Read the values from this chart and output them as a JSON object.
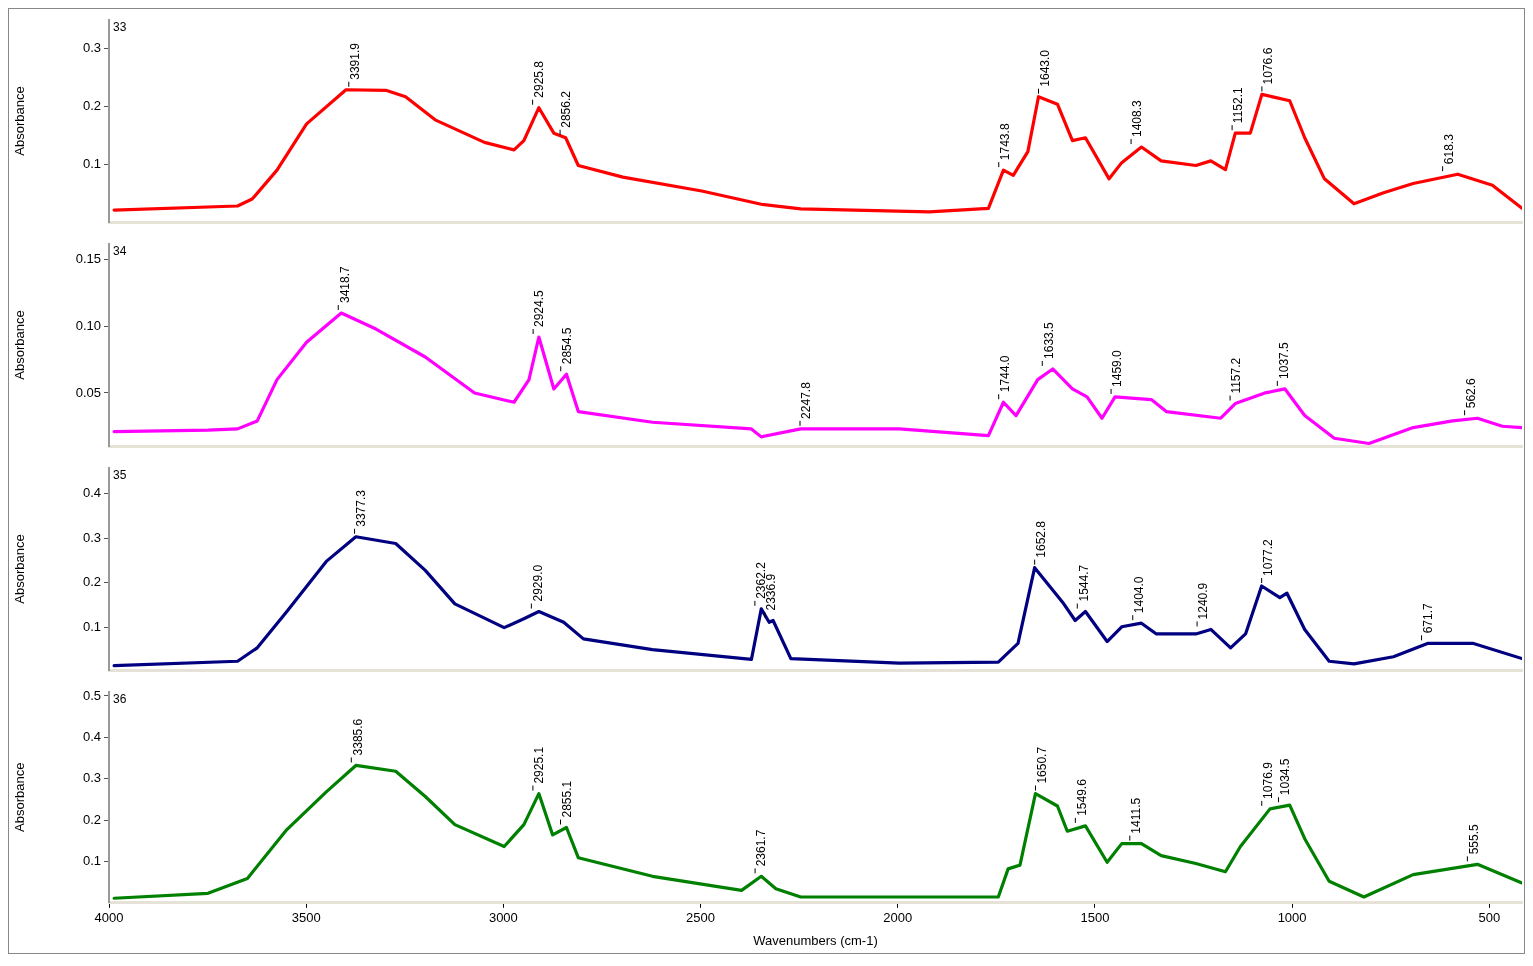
{
  "chart_data": [
    {
      "type": "line",
      "title": "33",
      "ylabel": "Absorbance",
      "xlim": [
        4000,
        417
      ],
      "ylim": [
        0,
        0.35
      ],
      "yticks": [
        0.1,
        0.2,
        0.3
      ],
      "tick_labels": "y",
      "grid": false,
      "legend": false,
      "series": [
        {
          "color": "#ff0000",
          "x": [
            3987,
            3674,
            3637,
            3574,
            3499,
            3399,
            3298,
            3248,
            3173,
            3048,
            2973,
            2948,
            2910,
            2872,
            2842,
            2810,
            2697,
            2497,
            2346,
            2246,
            1920,
            1770,
            1732,
            1707,
            1670,
            1643.0,
            1595,
            1557,
            1524,
            1464,
            1432,
            1382,
            1332,
            1244,
            1206,
            1169,
            1144,
            1106,
            1076.6,
            1006,
            968,
            918,
            843,
            768,
            693,
            580,
            492,
            417
          ],
          "values": [
            0.021,
            0.028,
            0.04,
            0.09,
            0.17,
            0.229,
            0.228,
            0.217,
            0.177,
            0.138,
            0.125,
            0.141,
            0.198,
            0.154,
            0.146,
            0.098,
            0.078,
            0.054,
            0.031,
            0.023,
            0.018,
            0.024,
            0.09,
            0.081,
            0.122,
            0.217,
            0.204,
            0.141,
            0.146,
            0.075,
            0.103,
            0.13,
            0.106,
            0.098,
            0.106,
            0.091,
            0.154,
            0.154,
            0.221,
            0.21,
            0.146,
            0.075,
            0.032,
            0.051,
            0.067,
            0.083,
            0.064,
            0.024
          ]
        }
      ],
      "annotations": [
        {
          "text": "3391.9",
          "x": 3391.9,
          "y": 0.229
        },
        {
          "text": "2925.8",
          "x": 2925.8,
          "y": 0.198
        },
        {
          "text": "2856.2",
          "x": 2856.2,
          "y": 0.146
        },
        {
          "text": "1743.8",
          "x": 1743.8,
          "y": 0.09
        },
        {
          "text": "1643.0",
          "x": 1643.0,
          "y": 0.217
        },
        {
          "text": "1408.3",
          "x": 1408.3,
          "y": 0.13
        },
        {
          "text": "1152.1",
          "x": 1152.1,
          "y": 0.154
        },
        {
          "text": "1076.6",
          "x": 1076.6,
          "y": 0.221
        },
        {
          "text": "618.3",
          "x": 618.3,
          "y": 0.083
        }
      ]
    },
    {
      "type": "line",
      "title": "34",
      "ylabel": "Absorbance",
      "xlim": [
        4000,
        417
      ],
      "ylim": [
        0.01,
        0.162
      ],
      "yticks": [
        0.05,
        {
          "value": 0.1,
          "label": "0.10"
        },
        0.15
      ],
      "tick_labels": "y",
      "grid": false,
      "legend": false,
      "series": [
        {
          "color": "#ff00ff",
          "x": [
            3987,
            3749,
            3674,
            3624,
            3574,
            3499,
            3411,
            3323,
            3198,
            3073,
            2973,
            2935,
            2910,
            2872,
            2840,
            2810,
            2622,
            2371,
            2346,
            2246,
            1996,
            1770,
            1732,
            1700,
            1645,
            1607,
            1557,
            1520,
            1482,
            1449,
            1357,
            1319,
            1181,
            1144,
            1069,
            1018,
            968,
            893,
            805,
            693,
            593,
            530,
            467,
            417
          ],
          "values": [
            0.021,
            0.022,
            0.023,
            0.029,
            0.06,
            0.088,
            0.11,
            0.098,
            0.077,
            0.05,
            0.043,
            0.06,
            0.092,
            0.053,
            0.064,
            0.036,
            0.028,
            0.023,
            0.017,
            0.023,
            0.023,
            0.018,
            0.043,
            0.033,
            0.06,
            0.068,
            0.053,
            0.047,
            0.031,
            0.047,
            0.045,
            0.036,
            0.031,
            0.042,
            0.05,
            0.053,
            0.033,
            0.016,
            0.012,
            0.024,
            0.029,
            0.031,
            0.025,
            0.024
          ]
        }
      ],
      "annotations": [
        {
          "text": "3418.7",
          "x": 3418.7,
          "y": 0.11
        },
        {
          "text": "2924.5",
          "x": 2924.5,
          "y": 0.092
        },
        {
          "text": "2854.5",
          "x": 2854.5,
          "y": 0.064
        },
        {
          "text": "2247.8",
          "x": 2247.8,
          "y": 0.023
        },
        {
          "text": "1744.0",
          "x": 1744.0,
          "y": 0.043
        },
        {
          "text": "1633.5",
          "x": 1633.5,
          "y": 0.068
        },
        {
          "text": "1459.0",
          "x": 1459.0,
          "y": 0.047
        },
        {
          "text": "1157.2",
          "x": 1157.2,
          "y": 0.042
        },
        {
          "text": "1037.5",
          "x": 1037.5,
          "y": 0.053
        },
        {
          "text": "562.6",
          "x": 562.6,
          "y": 0.031
        }
      ]
    },
    {
      "type": "line",
      "title": "35",
      "ylabel": "Absorbance",
      "xlim": [
        4000,
        417
      ],
      "ylim": [
        0.005,
        0.457
      ],
      "yticks": [
        0.1,
        0.2,
        0.3,
        0.4
      ],
      "tick_labels": "y",
      "grid": false,
      "legend": false,
      "series": [
        {
          "color": "#000080",
          "x": [
            3987,
            3674,
            3624,
            3549,
            3449,
            3374,
            3273,
            3198,
            3123,
            2998,
            2948,
            2910,
            2847,
            2797,
            2622,
            2371,
            2346,
            2326,
            2316,
            2271,
            1996,
            1745,
            1695,
            1652.8,
            1582,
            1550,
            1524,
            1469,
            1432,
            1382,
            1344,
            1244,
            1206,
            1156,
            1118,
            1077.2,
            1031,
            1013,
            968,
            906,
            843,
            743,
            655,
            542,
            417
          ],
          "values": [
            0.015,
            0.025,
            0.055,
            0.136,
            0.248,
            0.303,
            0.288,
            0.228,
            0.153,
            0.1,
            0.12,
            0.136,
            0.112,
            0.075,
            0.051,
            0.029,
            0.142,
            0.112,
            0.116,
            0.031,
            0.021,
            0.023,
            0.065,
            0.234,
            0.157,
            0.116,
            0.136,
            0.069,
            0.102,
            0.11,
            0.086,
            0.086,
            0.096,
            0.055,
            0.086,
            0.193,
            0.167,
            0.177,
            0.096,
            0.025,
            0.019,
            0.035,
            0.065,
            0.065,
            0.031
          ]
        }
      ],
      "annotations": [
        {
          "text": "3377.3",
          "x": 3377.3,
          "y": 0.303
        },
        {
          "text": "2929.0",
          "x": 2929.0,
          "y": 0.136
        },
        {
          "text": "2362.2",
          "x": 2362.2,
          "y": 0.142
        },
        {
          "text": "2336.9",
          "x": 2336.9,
          "y": 0.116
        },
        {
          "text": "1652.8",
          "x": 1652.8,
          "y": 0.234
        },
        {
          "text": "1544.7",
          "x": 1544.7,
          "y": 0.136
        },
        {
          "text": "1404.0",
          "x": 1404.0,
          "y": 0.11
        },
        {
          "text": "1240.9",
          "x": 1240.9,
          "y": 0.096
        },
        {
          "text": "1077.2",
          "x": 1077.2,
          "y": 0.193
        },
        {
          "text": "671.7",
          "x": 671.7,
          "y": 0.065
        }
      ]
    },
    {
      "type": "line",
      "title": "36",
      "ylabel": "Absorbance",
      "xlabel": "Wavenumbers (cm-1)",
      "xlim": [
        4000,
        417
      ],
      "xticks": [
        4000,
        3500,
        3000,
        2500,
        2000,
        1500,
        1000,
        500
      ],
      "ylim": [
        0,
        0.51
      ],
      "yticks": [
        0.1,
        0.2,
        0.3,
        0.4,
        0.5
      ],
      "grid": false,
      "legend": false,
      "series": [
        {
          "color": "#008000",
          "x": [
            3987,
            3749,
            3649,
            3549,
            3449,
            3374,
            3273,
            3198,
            3123,
            2998,
            2948,
            2910,
            2875,
            2840,
            2810,
            2622,
            2396,
            2346,
            2309,
            2246,
            1745,
            1720,
            1690,
            1650.7,
            1595,
            1570,
            1524,
            1469,
            1432,
            1382,
            1332,
            1244,
            1169,
            1131,
            1056,
            1006,
            968,
            906,
            818,
            693,
            530,
            417
          ],
          "values": [
            0.011,
            0.023,
            0.059,
            0.177,
            0.268,
            0.332,
            0.318,
            0.257,
            0.189,
            0.136,
            0.189,
            0.264,
            0.164,
            0.182,
            0.109,
            0.064,
            0.03,
            0.064,
            0.034,
            0.014,
            0.014,
            0.082,
            0.091,
            0.264,
            0.234,
            0.173,
            0.186,
            0.098,
            0.143,
            0.143,
            0.114,
            0.095,
            0.075,
            0.136,
            0.227,
            0.236,
            0.155,
            0.052,
            0.014,
            0.068,
            0.093,
            0.048
          ]
        }
      ],
      "annotations": [
        {
          "text": "3385.6",
          "x": 3385.6,
          "y": 0.332
        },
        {
          "text": "2925.1",
          "x": 2925.1,
          "y": 0.264
        },
        {
          "text": "2855.1",
          "x": 2855.1,
          "y": 0.182
        },
        {
          "text": "2361.7",
          "x": 2361.7,
          "y": 0.064
        },
        {
          "text": "1650.7",
          "x": 1650.7,
          "y": 0.264
        },
        {
          "text": "1549.6",
          "x": 1549.6,
          "y": 0.186
        },
        {
          "text": "1411.5",
          "x": 1411.5,
          "y": 0.143
        },
        {
          "text": "1076.9",
          "x": 1076.9,
          "y": 0.227
        },
        {
          "text": "1034.5",
          "x": 1034.5,
          "y": 0.236
        },
        {
          "text": "555.5",
          "x": 555.5,
          "y": 0.093
        }
      ]
    }
  ]
}
